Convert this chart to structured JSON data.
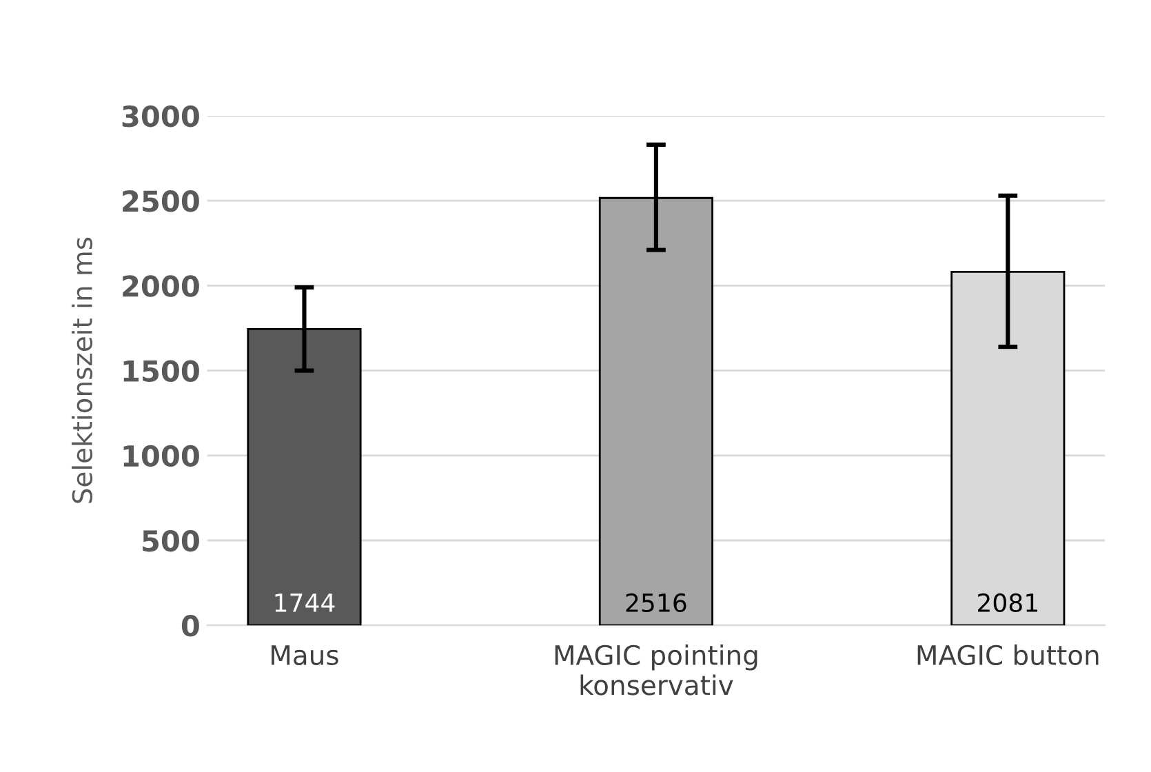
{
  "chart_data": {
    "type": "bar",
    "ylabel": "Selektionszeit in ms",
    "categories": [
      "Maus",
      "MAGIC pointing\nkonservativ",
      "MAGIC button"
    ],
    "values": [
      1744,
      2516,
      2081
    ],
    "colors": [
      "#595959",
      "#a5a5a5",
      "#d9d9d9"
    ],
    "errors": [
      [
        1500,
        1990
      ],
      [
        2210,
        2830
      ],
      [
        1640,
        2530
      ]
    ],
    "data_labels": true,
    "ylim": [
      0,
      3000
    ],
    "yticks": [
      0,
      500,
      1000,
      1500,
      2000,
      2500,
      3000
    ],
    "grid": "y"
  }
}
